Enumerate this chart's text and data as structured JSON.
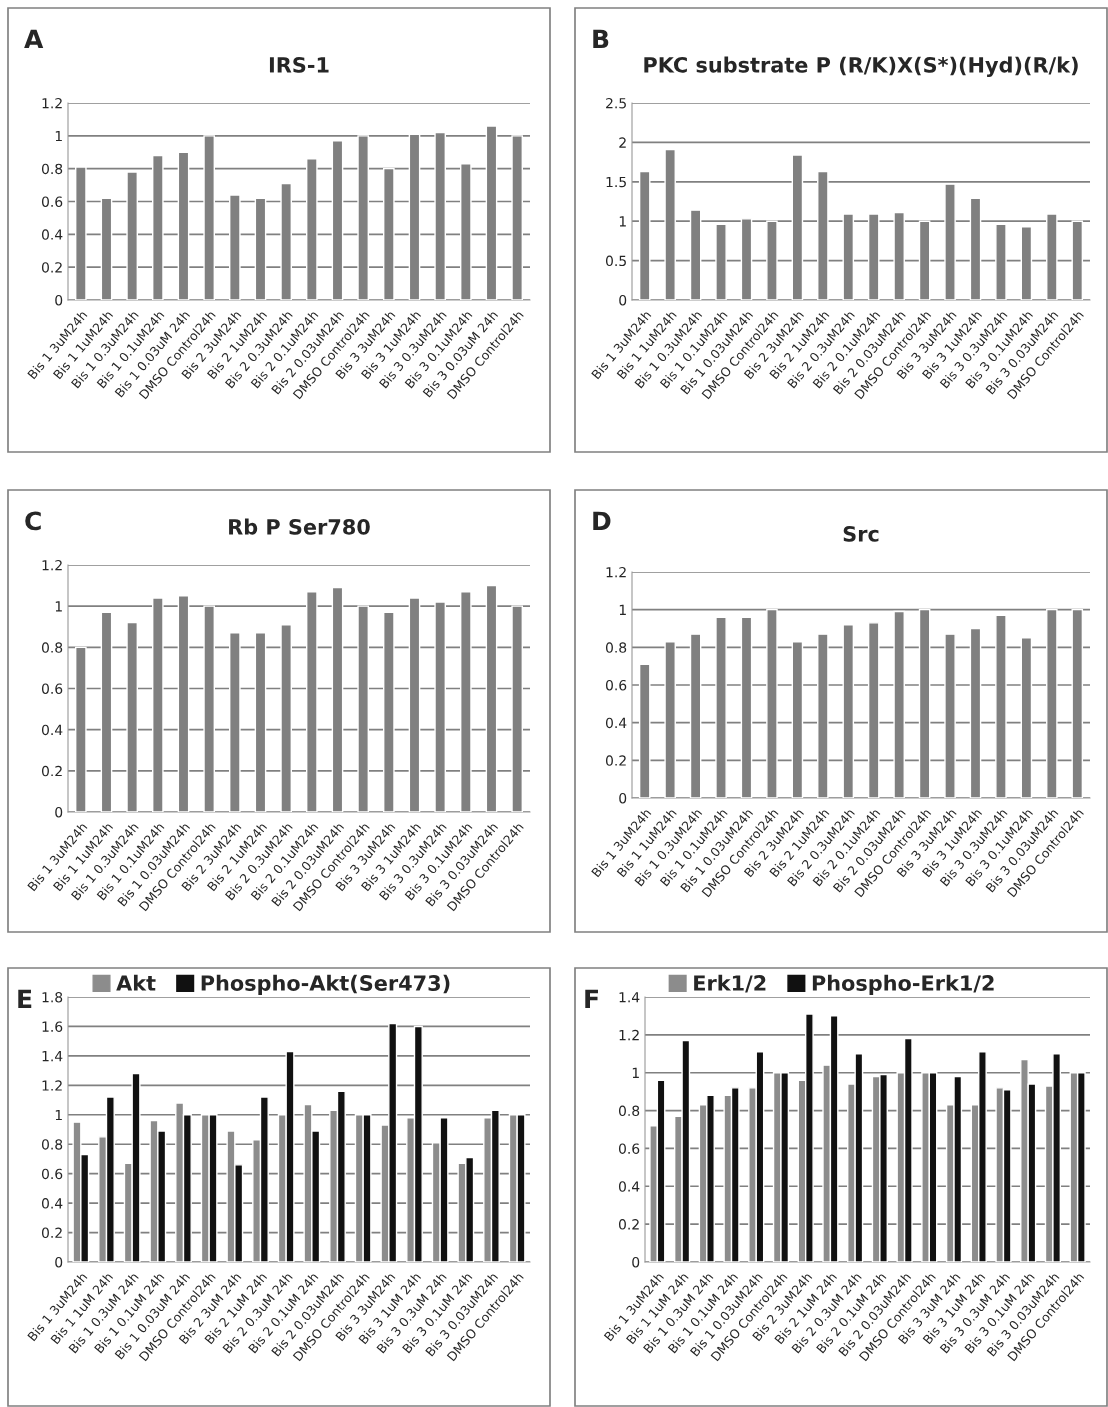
{
  "chart_data": [
    {
      "type": "bar",
      "title": "IRS-1",
      "annotations": [
        "A"
      ],
      "categories": [
        "Bis 1 3uM24h",
        "Bis 1 1uM24h",
        "Bis 1 0.3uM24h",
        "Bis 1 0.1uM24h",
        "Bis 1 0.03uM 24h",
        "DMSO Control24h",
        "Bis 2 3uM24h",
        "Bis 2 1uM24h",
        "Bis 2 0.3uM24h",
        "Bis 2 0.1uM24h",
        "Bis 2 0.03uM24h",
        "DMSO Control24h",
        "Bis 3 3uM24h",
        "Bis 3 1uM24h",
        "Bis 3 0.3uM24h",
        "Bis 3 0.1uM24h",
        "Bis 3 0.03uM 24h",
        "DMSO Control24h"
      ],
      "values": [
        0.81,
        0.62,
        0.78,
        0.88,
        0.9,
        1.0,
        0.64,
        0.62,
        0.71,
        0.86,
        0.97,
        1.0,
        0.8,
        1.01,
        1.02,
        0.83,
        1.06,
        1.0
      ],
      "color": "#808080",
      "ylim": [
        0,
        1.2
      ],
      "yticks": [
        0,
        0.2,
        0.4,
        0.6,
        0.8,
        1,
        1.2
      ],
      "grid": "y"
    },
    {
      "type": "bar",
      "title": "PKC substrate P (R/K)X(S*)(Hyd)(R/k)",
      "annotations": [
        "B"
      ],
      "categories": [
        "Bis 1 3uM24h",
        "Bis 1 1uM24h",
        "Bis 1 0.3uM24h",
        "Bis 1 0.1uM24h",
        "Bis 1 0.03uM24h",
        "DMSO Control24h",
        "Bis 2 3uM24h",
        "Bis 2 1uM24h",
        "Bis 2 0.3uM24h",
        "Bis 2 0.1uM24h",
        "Bis 2 0.03uM24h",
        "DMSO Control24h",
        "Bis 3 3uM24h",
        "Bis 3 1uM24h",
        "Bis 3 0.3uM24h",
        "Bis 3 0.1uM24h",
        "Bis 3 0.03uM24h",
        "DMSO Control24h"
      ],
      "values": [
        1.63,
        1.91,
        1.14,
        0.96,
        1.03,
        1.0,
        1.84,
        1.63,
        1.09,
        1.09,
        1.11,
        1.0,
        1.47,
        1.29,
        0.96,
        0.93,
        1.09,
        1.0
      ],
      "color": "#808080",
      "ylim": [
        0,
        2.5
      ],
      "yticks": [
        0,
        0.5,
        1,
        1.5,
        2,
        2.5
      ],
      "grid": "y"
    },
    {
      "type": "bar",
      "title": "Rb P Ser780",
      "annotations": [
        "C"
      ],
      "categories": [
        "Bis 1 3uM24h",
        "Bis 1 1uM24h",
        "Bis 1 0.3uM24h",
        "Bis 1 0.1uM24h",
        "Bis 1 0.03uM24h",
        "DMSO Control24h",
        "Bis 2 3uM24h",
        "Bis 2 1uM24h",
        "Bis 2 0.3uM24h",
        "Bis 2 0.1uM24h",
        "Bis 2 0.03uM24h",
        "DMSO Control24h",
        "Bis 3 3uM24h",
        "Bis 3 1uM24h",
        "Bis 3 0.3uM24h",
        "Bis 3 0.1uM24h",
        "Bis 3 0.03uM24h",
        "DMSO Control24h"
      ],
      "values": [
        0.8,
        0.97,
        0.92,
        1.04,
        1.05,
        1.0,
        0.87,
        0.87,
        0.91,
        1.07,
        1.09,
        1.0,
        0.97,
        1.04,
        1.02,
        1.07,
        1.1,
        1.0
      ],
      "color": "#808080",
      "ylim": [
        0,
        1.2
      ],
      "yticks": [
        0,
        0.2,
        0.4,
        0.6,
        0.8,
        1,
        1.2
      ],
      "grid": "y"
    },
    {
      "type": "bar",
      "title": "Src",
      "annotations": [
        "D"
      ],
      "categories": [
        "Bis 1 3uM24h",
        "Bis 1 1uM24h",
        "Bis 1 0.3uM24h",
        "Bis 1 0.1uM24h",
        "Bis 1 0.03uM24h",
        "DMSO Control24h",
        "Bis 2 3uM24h",
        "Bis 2 1uM24h",
        "Bis 2 0.3uM24h",
        "Bis 2 0.1uM24h",
        "Bis 2 0.03uM24h",
        "DMSO Control24h",
        "Bis 3 3uM24h",
        "Bis 3 1uM24h",
        "Bis 3 0.3uM24h",
        "Bis 3 0.1uM24h",
        "Bis 3 0.03uM24h",
        "DMSO Control24h"
      ],
      "values": [
        0.71,
        0.83,
        0.87,
        0.96,
        0.96,
        1.0,
        0.83,
        0.87,
        0.92,
        0.93,
        0.99,
        1.0,
        0.87,
        0.9,
        0.97,
        0.85,
        1.0,
        1.0
      ],
      "color": "#808080",
      "ylim": [
        0,
        1.2
      ],
      "yticks": [
        0,
        0.2,
        0.4,
        0.6,
        0.8,
        1,
        1.2
      ],
      "grid": "y"
    },
    {
      "type": "bar",
      "annotations": [
        "E"
      ],
      "categories": [
        "Bis 1 3uM24h",
        "Bis 1 1uM 24h",
        "Bis 1 0.3uM 24h",
        "Bis 1 0.1uM 24h",
        "Bis 1 0.03uM 24h",
        "DMSO Control24h",
        "Bis 2 3uM 24h",
        "Bis 2 1uM 24h",
        "Bis 2 0.3uM 24h",
        "Bis 2 0.1uM 24h",
        "Bis 2 0.03uM24h",
        "DMSO Control24h",
        "Bis 3 3uM24h",
        "Bis 3 1uM 24h",
        "Bis 3 0.3uM 24h",
        "Bis 3 0.1uM 24h",
        "Bis 3 0.03uM24h",
        "DMSO Control24h"
      ],
      "series": [
        {
          "name": "Akt",
          "color": "#8c8c8c",
          "values": [
            0.95,
            0.85,
            0.67,
            0.96,
            1.08,
            1.0,
            0.89,
            0.83,
            1.0,
            1.07,
            1.03,
            1.0,
            0.93,
            0.98,
            0.81,
            0.67,
            0.98,
            1.0
          ]
        },
        {
          "name": "Phospho-Akt(Ser473)",
          "color": "#111111",
          "values": [
            0.73,
            1.12,
            1.28,
            0.89,
            1.0,
            1.0,
            0.66,
            1.12,
            1.43,
            0.89,
            1.16,
            1.0,
            1.62,
            1.6,
            0.98,
            0.71,
            1.03,
            1.0
          ]
        }
      ],
      "ylim": [
        0,
        1.8
      ],
      "yticks": [
        0,
        0.2,
        0.4,
        0.6,
        0.8,
        1,
        1.2,
        1.4,
        1.6,
        1.8
      ],
      "grid": "y",
      "legend": "top"
    },
    {
      "type": "bar",
      "annotations": [
        "F"
      ],
      "categories": [
        "Bis 1 3uM24h",
        "Bis 1 1uM 24h",
        "Bis 1 0.3uM 24h",
        "Bis 1 0.1uM 24h",
        "Bis 1 0.03uM24h",
        "DMSO Control24h",
        "Bis 2 3uM24h",
        "Bis 2 1uM 24h",
        "Bis 2 0.3uM 24h",
        "Bis 2 0.1uM 24h",
        "Bis 2 0.03uM24h",
        "DMSO Control24h",
        "Bis 3 3uM 24h",
        "Bis 3 1uM 24h",
        "Bis 3 0.3uM 24h",
        "Bis 3 0.1uM 24h",
        "Bis 3 0.03uM24h",
        "DMSO Control24h"
      ],
      "series": [
        {
          "name": "Erk1/2",
          "color": "#8c8c8c",
          "values": [
            0.72,
            0.77,
            0.83,
            0.88,
            0.92,
            1.0,
            0.96,
            1.04,
            0.94,
            0.98,
            1.0,
            1.0,
            0.83,
            0.83,
            0.92,
            1.07,
            0.93,
            1.0
          ]
        },
        {
          "name": "Phospho-Erk1/2",
          "color": "#111111",
          "values": [
            0.96,
            1.17,
            0.88,
            0.92,
            1.11,
            1.0,
            1.31,
            1.3,
            1.1,
            0.99,
            1.18,
            1.0,
            0.98,
            1.11,
            0.91,
            0.94,
            1.1,
            1.0
          ]
        }
      ],
      "ylim": [
        0,
        1.4
      ],
      "yticks": [
        0,
        0.2,
        0.4,
        0.6,
        0.8,
        1,
        1.2,
        1.4
      ],
      "grid": "y",
      "legend": "top"
    }
  ]
}
